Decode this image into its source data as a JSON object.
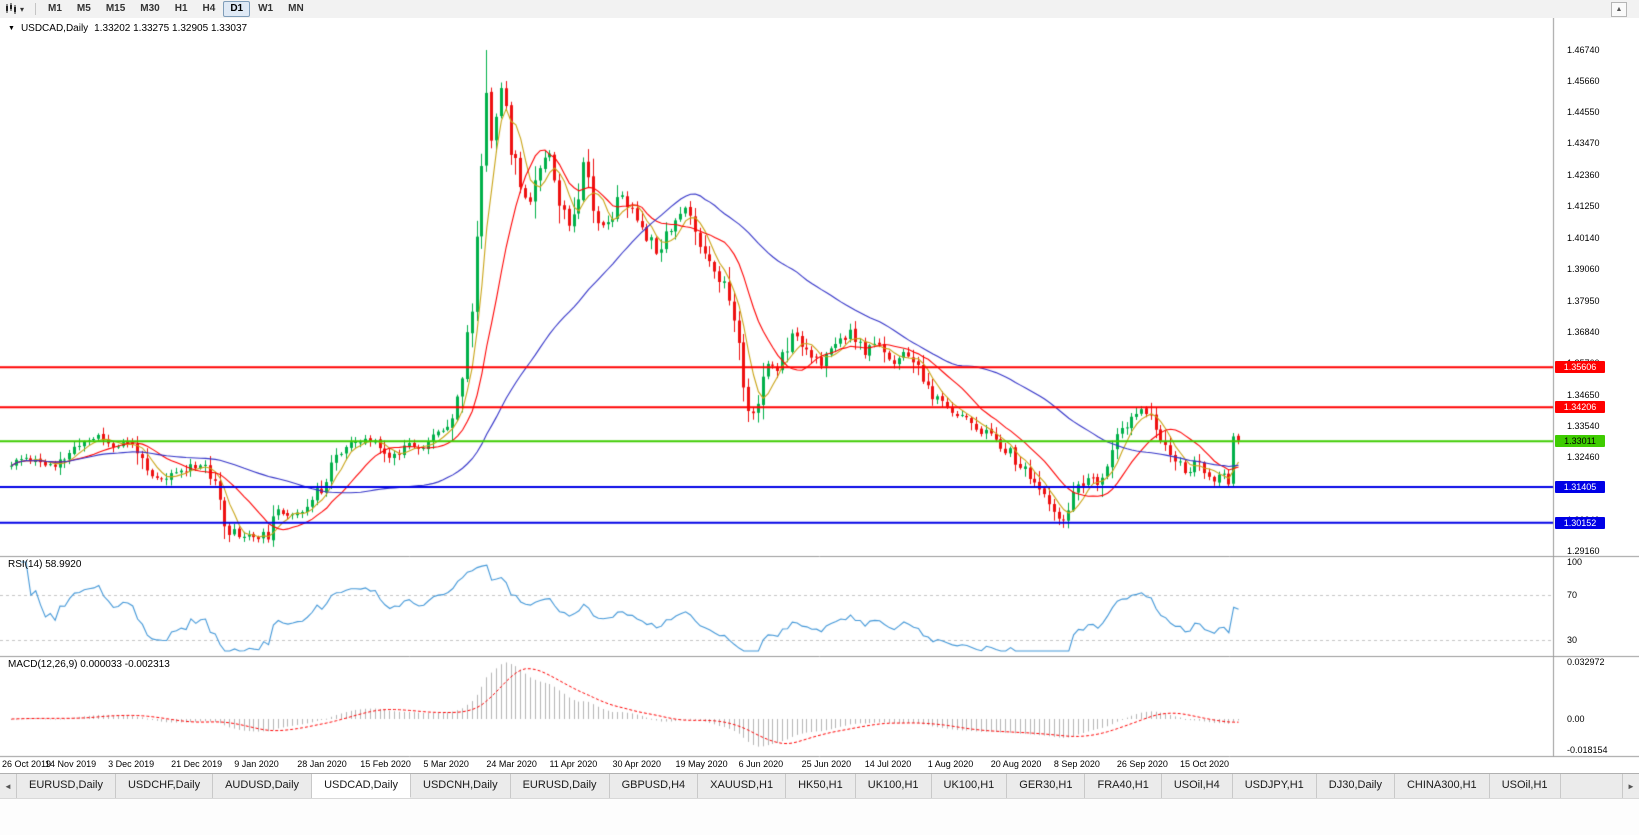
{
  "icons": {
    "dropdown_caret": "▾",
    "title_marker": "▼",
    "overflow_up": "▲",
    "tab_scroll_left": "◄",
    "tab_scroll_right": "►"
  },
  "toolbar": {
    "timeframes": [
      "M1",
      "M5",
      "M15",
      "M30",
      "H1",
      "H4",
      "D1",
      "W1",
      "MN"
    ],
    "active": "D1"
  },
  "chart_data": {
    "type": "candlestick",
    "symbol": "USDCAD",
    "timeframe": "Daily",
    "title": "USDCAD,Daily",
    "ohlc_text": "1.33202 1.33275 1.32905 1.33037",
    "open": 1.33202,
    "high": 1.33275,
    "low": 1.32905,
    "close": 1.33037,
    "bars": 254,
    "seed": 11,
    "label_step_bars": 13,
    "candle_colors": {
      "bull": "#00b04a",
      "bear": "#ee1111"
    },
    "price_axis_labels": [
      "1.46740",
      "1.45660",
      "1.44550",
      "1.43470",
      "1.42360",
      "1.41250",
      "1.40140",
      "1.39060",
      "1.37950",
      "1.36840",
      "1.35760",
      "1.34650",
      "1.33540",
      "1.32460",
      "1.31350",
      "1.30240",
      "1.29160"
    ],
    "date_labels": [
      "26 Oct 2019",
      "14 Nov 2019",
      "3 Dec 2019",
      "21 Dec 2019",
      "9 Jan 2020",
      "28 Jan 2020",
      "15 Feb 2020",
      "5 Mar 2020",
      "24 Mar 2020",
      "11 Apr 2020",
      "30 Apr 2020",
      "19 May 2020",
      "6 Jun 2020",
      "25 Jun 2020",
      "14 Jul 2020",
      "1 Aug 2020",
      "20 Aug 2020",
      "8 Sep 2020",
      "26 Sep 2020",
      "15 Oct 2020"
    ],
    "levels": [
      {
        "value": 1.35606,
        "label": "1.35606",
        "line_color": "#ff0000",
        "tag_bg": "#ff0000",
        "tag_text": "#ffffff"
      },
      {
        "value": 1.34206,
        "label": "1.34206",
        "line_color": "#ff0000",
        "tag_bg": "#ff0000",
        "tag_text": "#ffffff"
      },
      {
        "value": 1.33011,
        "label": "1.33011",
        "line_color": "#3ecc00",
        "tag_bg": "#3ecc00",
        "tag_text": "#000000"
      },
      {
        "value": 1.31405,
        "label": "1.31405",
        "line_color": "#0000e6",
        "tag_bg": "#0000e6",
        "tag_text": "#ffffff"
      },
      {
        "value": 1.30152,
        "label": "1.30152",
        "line_color": "#0000e6",
        "tag_bg": "#0000e6",
        "tag_text": "#ffffff"
      }
    ],
    "ma_lines": [
      {
        "name": "ma-fast",
        "period": 5,
        "color": "#c9a417"
      },
      {
        "name": "ma-mid",
        "period": 13,
        "color": "#ff0000"
      },
      {
        "name": "ma-slow",
        "period": 45,
        "color": "#3434c8"
      }
    ],
    "indicators": {
      "rsi": {
        "label": "RSI(14) 58.9920",
        "period": 14,
        "value": 58.992,
        "axis_labels": [
          "100",
          "70",
          "30"
        ],
        "guide_levels": [
          70,
          30
        ],
        "line_color": "#4498d8"
      },
      "macd": {
        "label": "MACD(12,26,9) 0.000033 -0.002313",
        "fast": 12,
        "slow": 26,
        "signal": 9,
        "value": 3.3e-05,
        "signal_value": -0.002313,
        "axis_labels": [
          "0.032972",
          "0.00",
          "-0.018154"
        ],
        "hist_color": "#b5b5b5",
        "signal_color": "#ff0000"
      }
    },
    "anchors": [
      [
        0,
        1.3215
      ],
      [
        3,
        1.3245
      ],
      [
        6,
        1.323
      ],
      [
        9,
        1.3205
      ],
      [
        12,
        1.326
      ],
      [
        15,
        1.33
      ],
      [
        18,
        1.332
      ],
      [
        21,
        1.3285
      ],
      [
        24,
        1.3295
      ],
      [
        26,
        1.328
      ],
      [
        28,
        1.3175
      ],
      [
        31,
        1.3165
      ],
      [
        34,
        1.319
      ],
      [
        37,
        1.3215
      ],
      [
        40,
        1.322
      ],
      [
        42,
        1.313
      ],
      [
        45,
        1.299
      ],
      [
        48,
        1.297
      ],
      [
        51,
        1.2966
      ],
      [
        53,
        1.2975
      ],
      [
        55,
        1.3045
      ],
      [
        58,
        1.3052
      ],
      [
        61,
        1.3068
      ],
      [
        64,
        1.314
      ],
      [
        66,
        1.323
      ],
      [
        69,
        1.328
      ],
      [
        73,
        1.3305
      ],
      [
        76,
        1.3295
      ],
      [
        78,
        1.324
      ],
      [
        82,
        1.33
      ],
      [
        85,
        1.328
      ],
      [
        88,
        1.333
      ],
      [
        91,
        1.339
      ],
      [
        93,
        1.353
      ],
      [
        95,
        1.378
      ],
      [
        96,
        1.4
      ],
      [
        97,
        1.428
      ],
      [
        98,
        1.453
      ],
      [
        99,
        1.436
      ],
      [
        100,
        1.447
      ],
      [
        101,
        1.455
      ],
      [
        103,
        1.434
      ],
      [
        105,
        1.42
      ],
      [
        107,
        1.415
      ],
      [
        109,
        1.428
      ],
      [
        111,
        1.433
      ],
      [
        113,
        1.414
      ],
      [
        115,
        1.406
      ],
      [
        117,
        1.418
      ],
      [
        118,
        1.43
      ],
      [
        120,
        1.413
      ],
      [
        122,
        1.405
      ],
      [
        124,
        1.41
      ],
      [
        126,
        1.417
      ],
      [
        128,
        1.41
      ],
      [
        130,
        1.406
      ],
      [
        133,
        1.397
      ],
      [
        136,
        1.406
      ],
      [
        139,
        1.412
      ],
      [
        142,
        1.4
      ],
      [
        145,
        1.391
      ],
      [
        148,
        1.381
      ],
      [
        150,
        1.363
      ],
      [
        152,
        1.34
      ],
      [
        154,
        1.344
      ],
      [
        156,
        1.357
      ],
      [
        158,
        1.356
      ],
      [
        161,
        1.369
      ],
      [
        164,
        1.363
      ],
      [
        167,
        1.356
      ],
      [
        170,
        1.365
      ],
      [
        173,
        1.368
      ],
      [
        176,
        1.361
      ],
      [
        179,
        1.365
      ],
      [
        182,
        1.357
      ],
      [
        185,
        1.361
      ],
      [
        188,
        1.351
      ],
      [
        191,
        1.344
      ],
      [
        194,
        1.341
      ],
      [
        197,
        1.338
      ],
      [
        200,
        1.334
      ],
      [
        203,
        1.331
      ],
      [
        206,
        1.326
      ],
      [
        208,
        1.321
      ],
      [
        210,
        1.318
      ],
      [
        212,
        1.313
      ],
      [
        214,
        1.307
      ],
      [
        216,
        1.302
      ],
      [
        218,
        1.307
      ],
      [
        220,
        1.313
      ],
      [
        222,
        1.317
      ],
      [
        224,
        1.314
      ],
      [
        226,
        1.323
      ],
      [
        228,
        1.331
      ],
      [
        230,
        1.335
      ],
      [
        232,
        1.34
      ],
      [
        234,
        1.341
      ],
      [
        236,
        1.334
      ],
      [
        238,
        1.329
      ],
      [
        240,
        1.324
      ],
      [
        242,
        1.319
      ],
      [
        244,
        1.323
      ],
      [
        246,
        1.319
      ],
      [
        248,
        1.316
      ],
      [
        250,
        1.318
      ],
      [
        252,
        1.315
      ],
      [
        253,
        1.33037
      ]
    ],
    "overrides": {
      "50": {
        "low": 1.2949
      },
      "98": {
        "high": 1.4674
      },
      "101": {
        "high": 1.456
      },
      "216": {
        "low": 1.3007
      },
      "252": {
        "open": 1.3152,
        "close": 1.3318,
        "high": 1.333,
        "low": 1.3142
      },
      "253": {
        "open": 1.33202,
        "high": 1.33275,
        "low": 1.32905,
        "close": 1.33037
      }
    }
  },
  "bottom_tabs": {
    "active_index": 3,
    "items": [
      "EURUSD,Daily",
      "USDCHF,Daily",
      "AUDUSD,Daily",
      "USDCAD,Daily",
      "USDCNH,Daily",
      "EURUSD,Daily",
      "GBPUSD,H4",
      "XAUUSD,H1",
      "HK50,H1",
      "UK100,H1",
      "UK100,H1",
      "GER30,H1",
      "FRA40,H1",
      "USOil,H4",
      "USDJPY,H1",
      "DJ30,Daily",
      "CHINA300,H1",
      "USOil,H1"
    ]
  }
}
